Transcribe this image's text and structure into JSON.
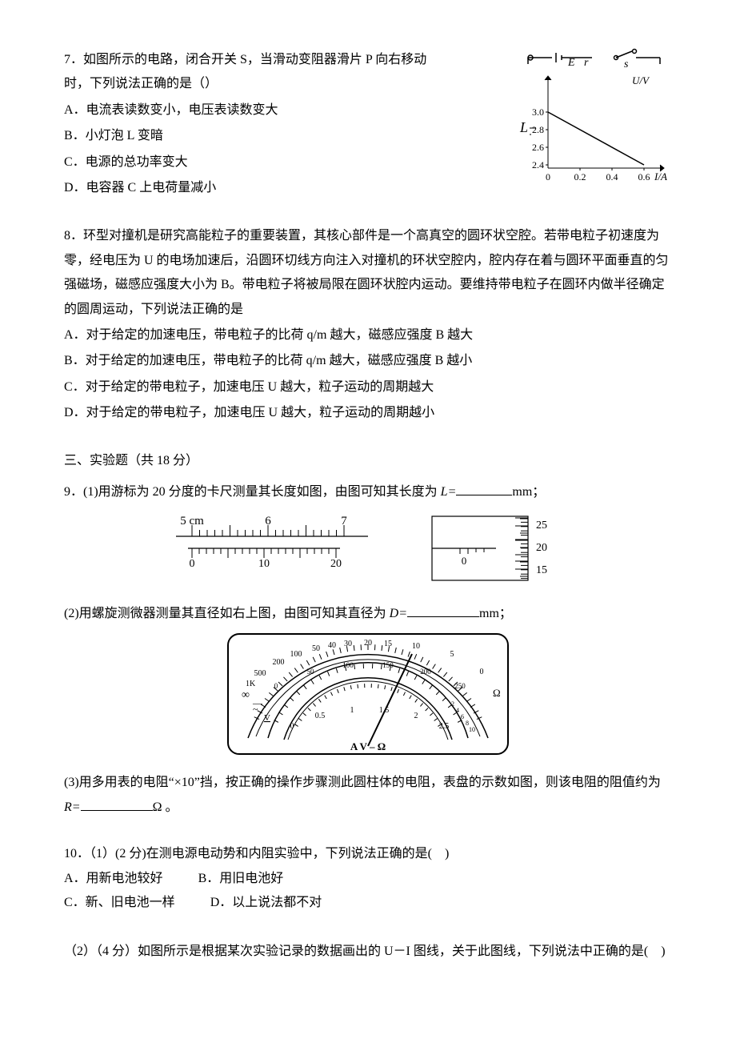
{
  "q7": {
    "stem_a": "7．如图所示的电路，闭合开关 S，当滑动变阻器滑片 P 向右移动",
    "stem_b": "时，下列说法正确的是（）",
    "A": "A．电流表读数变小，电压表读数变大",
    "B": "B．小灯泡 L 变暗",
    "C": "C．电源的总功率变大",
    "D": "D．电容器 C 上电荷量减小",
    "graph": {
      "ylabel": "U/V",
      "xlabel": "I/A",
      "yticks": [
        "2.4",
        "2.6",
        "2.8",
        "3.0"
      ],
      "xticks": [
        "0",
        "0.2",
        "0.4",
        "0.6"
      ],
      "L_label": "L",
      "circuit_E": "E",
      "circuit_r": "r",
      "circuit_s": "s",
      "line_color": "#000000",
      "axis_color": "#000000"
    }
  },
  "q8": {
    "stem": "8．环型对撞机是研究高能粒子的重要装置，其核心部件是一个高真空的圆环状空腔。若带电粒子初速度为零，经电压为 U 的电场加速后，沿圆环切线方向注入对撞机的环状空腔内，腔内存在着与圆环平面垂直的匀强磁场，磁感应强度大小为 B。带电粒子将被局限在圆环状腔内运动。要维持带电粒子在圆环内做半径确定的圆周运动，下列说法正确的是",
    "A": "A．对于给定的加速电压，带电粒子的比荷 q/m 越大，磁感应强度 B 越大",
    "B": "B．对于给定的加速电压，带电粒子的比荷 q/m 越大，磁感应强度 B 越小",
    "C": "C．对于给定的带电粒子，加速电压 U 越大，粒子运动的周期越大",
    "D": "D．对于给定的带电粒子，加速电压 U 越大，粒子运动的周期越小"
  },
  "section3": "三、实验题（共 18 分）",
  "q9": {
    "p1_a": "9．(1)用游标为 20 分度的卡尺测量其长度如图，由图可知其长度为 ",
    "p1_var": "L=",
    "p1_unit": "mm；",
    "vernier": {
      "main_labels": [
        "5 cm",
        "6",
        "7"
      ],
      "sub_labels": [
        "0",
        "10",
        "20"
      ],
      "mic_labels": [
        "25",
        "20",
        "15"
      ],
      "mic_zero": "0"
    },
    "p2_a": "(2)用螺旋测微器测量其直径如右上图，由图可知其直径为 ",
    "p2_var": "D=",
    "p2_unit": "mm；",
    "meter": {
      "top_scale": [
        "500",
        "200",
        "100",
        "50",
        "40",
        "30",
        "20",
        "15",
        "10",
        "5",
        "0"
      ],
      "top_1k": "1K",
      "top_inf": "∞",
      "mid_scale": [
        "0",
        "50",
        "100",
        "150",
        "200",
        "250"
      ],
      "tiny": [
        "2",
        "4",
        "6",
        "8",
        "10"
      ],
      "bottom_scale": [
        "0",
        "0.5",
        "1",
        "1.5",
        "2",
        "2.5"
      ],
      "omega": "Ω",
      "V": "V",
      "AVO": "A   V – Ω",
      "tilde": "~",
      "dash": "—"
    },
    "p3_a": "(3)用多用表的电阻“×10”挡，按正确的操作步骤测此圆柱体的电阻，表盘的示数如图，则该电阻的阻值约为 ",
    "p3_var": "R=",
    "p3_unit": "Ω 。"
  },
  "q10": {
    "p1": "10．（1）(2 分)在测电源电动势和内阻实验中，下列说法正确的是(　)",
    "A": "A．用新电池较好",
    "B": "B．用旧电池好",
    "C": "C．新、旧电池一样",
    "D": "D．以上说法都不对",
    "p2": "（2）（4 分）如图所示是根据某次实验记录的数据画出的 U－I 图线，关于此图线，下列说法中正确的是(　)"
  }
}
